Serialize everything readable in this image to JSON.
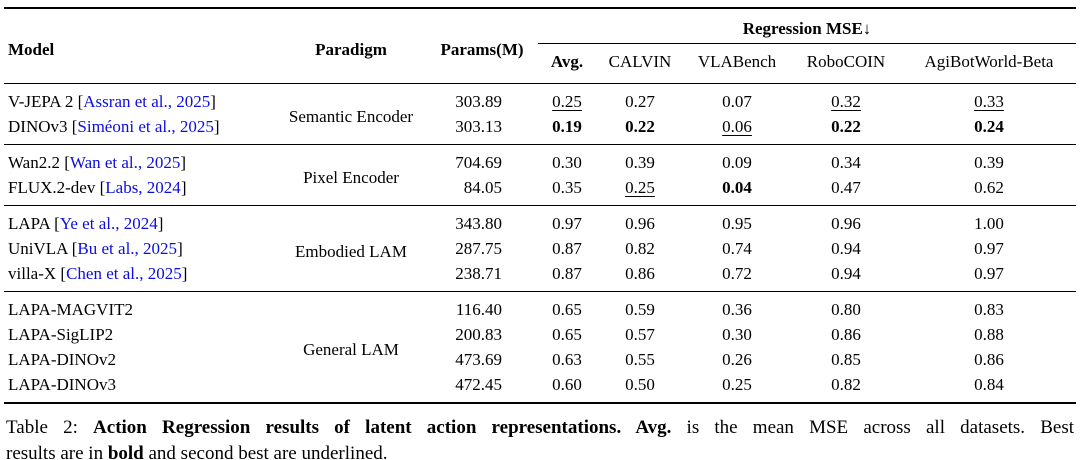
{
  "colors": {
    "link_blue": "#0d0de0",
    "text": "#000000",
    "background": "#ffffff"
  },
  "table": {
    "header": {
      "model": "Model",
      "paradigm": "Paradigm",
      "params": "Params(M)",
      "mse_group": "Regression MSE↓",
      "subcols": [
        "Avg.",
        "CALVIN",
        "VLABench",
        "RoboCOIN",
        "AgiBotWorld-Beta"
      ]
    },
    "groups": [
      {
        "paradigm": "Semantic Encoder",
        "rows": [
          {
            "pre": "V-JEPA 2 [",
            "cite": "Assran et al., 2025",
            "post": "]",
            "params": "303.89",
            "values": [
              "0.25",
              "0.27",
              "0.07",
              "0.32",
              "0.33"
            ]
          },
          {
            "pre": "DINOv3 [",
            "cite": "Siméoni et al., 2025",
            "post": "]",
            "params": "303.13",
            "values": [
              "0.19",
              "0.22",
              "0.06",
              "0.22",
              "0.24"
            ]
          }
        ]
      },
      {
        "paradigm": "Pixel Encoder",
        "rows": [
          {
            "pre": "Wan2.2 [",
            "cite": "Wan et al., 2025",
            "post": "]",
            "params": "704.69",
            "values": [
              "0.30",
              "0.39",
              "0.09",
              "0.34",
              "0.39"
            ]
          },
          {
            "pre": "FLUX.2-dev [",
            "cite": "Labs, 2024",
            "post": "]",
            "params": "84.05",
            "values": [
              "0.35",
              "0.25",
              "0.04",
              "0.47",
              "0.62"
            ]
          }
        ]
      },
      {
        "paradigm": "Embodied LAM",
        "rows": [
          {
            "pre": "LAPA [",
            "cite": "Ye et al., 2024",
            "post": "]",
            "params": "343.80",
            "values": [
              "0.97",
              "0.96",
              "0.95",
              "0.96",
              "1.00"
            ]
          },
          {
            "pre": "UniVLA [",
            "cite": "Bu et al., 2025",
            "post": "]",
            "params": "287.75",
            "values": [
              "0.87",
              "0.82",
              "0.74",
              "0.94",
              "0.97"
            ]
          },
          {
            "pre": "villa-X [",
            "cite": "Chen et al., 2025",
            "post": "]",
            "params": "238.71",
            "values": [
              "0.87",
              "0.86",
              "0.72",
              "0.94",
              "0.97"
            ]
          }
        ]
      },
      {
        "paradigm": "General LAM",
        "rows": [
          {
            "pre": "LAPA-MAGVIT2",
            "cite": "",
            "post": "",
            "params": "116.40",
            "values": [
              "0.65",
              "0.59",
              "0.36",
              "0.80",
              "0.83"
            ]
          },
          {
            "pre": "LAPA-SigLIP2",
            "cite": "",
            "post": "",
            "params": "200.83",
            "values": [
              "0.65",
              "0.57",
              "0.30",
              "0.86",
              "0.88"
            ]
          },
          {
            "pre": "LAPA-DINOv2",
            "cite": "",
            "post": "",
            "params": "473.69",
            "values": [
              "0.63",
              "0.55",
              "0.26",
              "0.85",
              "0.86"
            ]
          },
          {
            "pre": "LAPA-DINOv3",
            "cite": "",
            "post": "",
            "params": "472.45",
            "values": [
              "0.60",
              "0.50",
              "0.25",
              "0.82",
              "0.84"
            ]
          }
        ]
      }
    ]
  },
  "caption": {
    "line1": {
      "prefix": "Table 2: ",
      "bold": "Action Regression results of latent action representations. Avg.",
      "rest": " is the mean MSE across all datasets. Best"
    },
    "line2": {
      "p1": "results are in ",
      "bold": "bold",
      "p2": " and second best are ",
      "underline": "underlined",
      "p3": "."
    }
  }
}
